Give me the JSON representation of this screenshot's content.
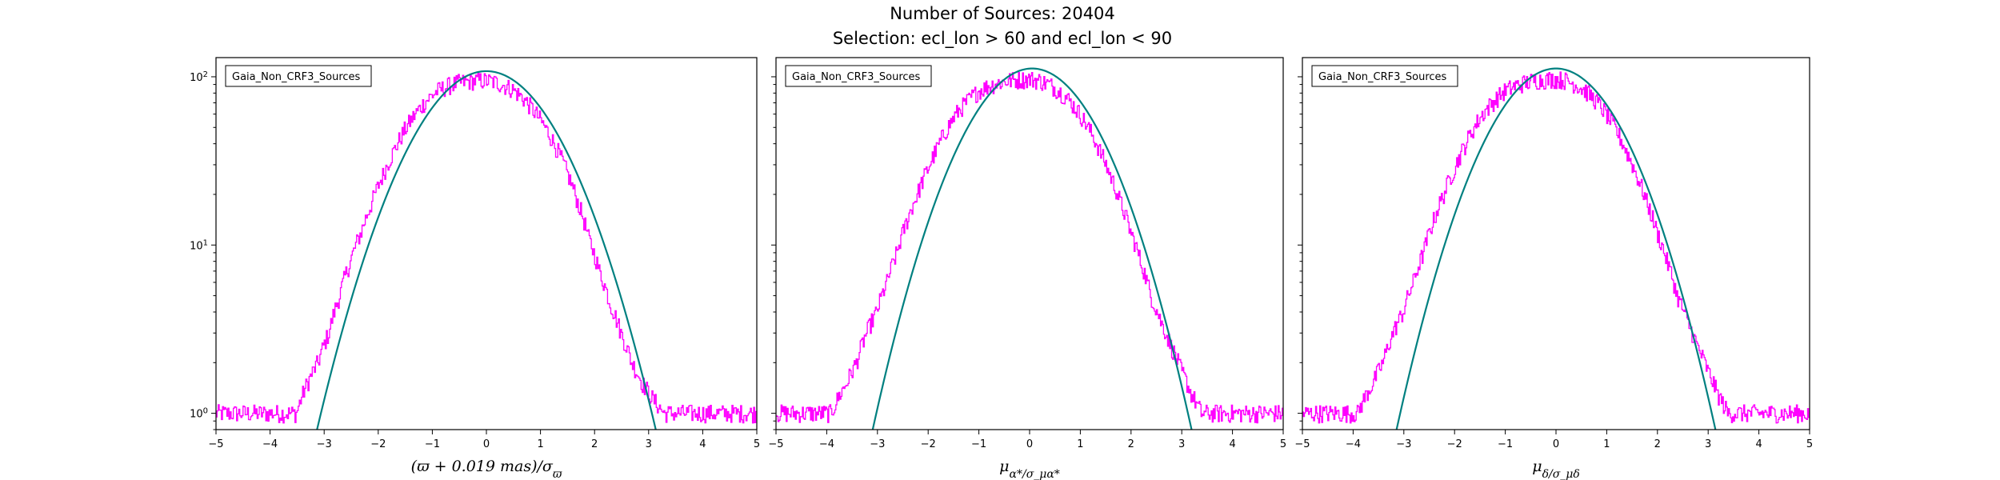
{
  "figure": {
    "suptitle_line1": "Number of Sources: 20404",
    "suptitle_line2": "Selection: ecl_lon > 60 and ecl_lon < 90"
  },
  "colors": {
    "histogram": "#ff00ff",
    "gaussian_fit": "#008080",
    "axes": "#000000"
  },
  "chart_data": [
    {
      "type": "histogram",
      "legend": "Gaia_Non_CRF3_Sources",
      "legend_position": "upper-left",
      "xlabel": "(ϖ + 0.019 mas)/σ_ϖ",
      "xlim": [
        -5,
        5
      ],
      "ylim": [
        0.8,
        130
      ],
      "yscale": "log",
      "xticks": [
        "−5",
        "−4",
        "−3",
        "−2",
        "−1",
        "0",
        "1",
        "2",
        "3",
        "4",
        "5"
      ],
      "yticks": [
        "10^0",
        "10^1",
        "10^2"
      ],
      "histogram": {
        "x": [
          -4.0,
          -3.9,
          -3.7,
          -3.5,
          -3.3,
          -3.1,
          -2.9,
          -2.7,
          -2.5,
          -2.3,
          -2.1,
          -1.9,
          -1.7,
          -1.5,
          -1.3,
          -1.1,
          -0.9,
          -0.7,
          -0.5,
          -0.3,
          -0.1,
          0.1,
          0.3,
          0.5,
          0.7,
          0.9,
          1.1,
          1.3,
          1.5,
          1.7,
          1.9,
          2.1,
          2.3,
          2.5,
          2.7,
          2.9,
          3.1,
          3.3,
          3.5,
          3.9,
          4.5
        ],
        "y": [
          1,
          1,
          1,
          1,
          1.5,
          2,
          3,
          5,
          8,
          12,
          18,
          26,
          36,
          48,
          60,
          72,
          82,
          88,
          92,
          94,
          95,
          94,
          90,
          84,
          74,
          62,
          50,
          38,
          27,
          18,
          11,
          7,
          4.5,
          3,
          2,
          1.5,
          1.2,
          1,
          1,
          1,
          1
        ]
      },
      "gaussian_fit": {
        "amplitude": 108,
        "mean": 0,
        "sigma": 1.0
      }
    },
    {
      "type": "histogram",
      "legend": "Gaia_Non_CRF3_Sources",
      "legend_position": "upper-left",
      "xlabel": "μ_α*/σ_μα*",
      "xlim": [
        -5,
        5
      ],
      "ylim": [
        0.8,
        130
      ],
      "yscale": "log",
      "xticks": [
        "−5",
        "−4",
        "−3",
        "−2",
        "−1",
        "0",
        "1",
        "2",
        "3",
        "4",
        "5"
      ],
      "yticks": [],
      "histogram": {
        "x": [
          -4.8,
          -4.5,
          -4.3,
          -3.9,
          -3.6,
          -3.4,
          -3.2,
          -3.0,
          -2.8,
          -2.6,
          -2.4,
          -2.2,
          -2.0,
          -1.8,
          -1.6,
          -1.4,
          -1.2,
          -1.0,
          -0.8,
          -0.6,
          -0.4,
          -0.2,
          0.0,
          0.2,
          0.4,
          0.6,
          0.8,
          1.0,
          1.2,
          1.4,
          1.6,
          1.8,
          2.0,
          2.2,
          2.4,
          2.6,
          2.8,
          3.0,
          3.2,
          3.4,
          3.8,
          4.5
        ],
        "y": [
          1,
          1,
          1,
          1,
          1.5,
          2,
          3,
          4,
          6,
          9,
          14,
          20,
          28,
          38,
          50,
          62,
          72,
          82,
          88,
          92,
          95,
          96,
          97,
          95,
          90,
          82,
          72,
          60,
          48,
          36,
          26,
          18,
          12,
          8,
          5,
          3.5,
          2.5,
          1.8,
          1.3,
          1,
          1,
          1
        ]
      },
      "gaussian_fit": {
        "amplitude": 112,
        "mean": 0.05,
        "sigma": 1.0
      }
    },
    {
      "type": "histogram",
      "legend": "Gaia_Non_CRF3_Sources",
      "legend_position": "upper-left",
      "xlabel": "μ_δ/σ_μδ",
      "xlim": [
        -5,
        5
      ],
      "ylim": [
        0.8,
        130
      ],
      "yscale": "log",
      "xticks": [
        "−5",
        "−4",
        "−3",
        "−2",
        "−1",
        "0",
        "1",
        "2",
        "3",
        "4",
        "5"
      ],
      "yticks": [],
      "histogram": {
        "x": [
          -4.9,
          -4.3,
          -3.9,
          -3.6,
          -3.4,
          -3.2,
          -3.0,
          -2.8,
          -2.6,
          -2.4,
          -2.2,
          -2.0,
          -1.8,
          -1.6,
          -1.4,
          -1.2,
          -1.0,
          -0.8,
          -0.6,
          -0.4,
          -0.2,
          0.0,
          0.2,
          0.4,
          0.6,
          0.8,
          1.0,
          1.2,
          1.4,
          1.6,
          1.8,
          2.0,
          2.2,
          2.4,
          2.6,
          2.8,
          3.0,
          3.2,
          3.4,
          3.8,
          4.5
        ],
        "y": [
          1,
          1,
          1,
          1.5,
          2,
          3,
          4,
          6,
          9,
          14,
          20,
          28,
          38,
          50,
          62,
          72,
          82,
          88,
          92,
          95,
          96,
          97,
          95,
          90,
          82,
          72,
          60,
          48,
          36,
          26,
          18,
          12,
          8,
          5,
          3.5,
          2.5,
          1.8,
          1.3,
          1,
          1,
          1
        ]
      },
      "gaussian_fit": {
        "amplitude": 112,
        "mean": 0.0,
        "sigma": 1.0
      }
    }
  ]
}
